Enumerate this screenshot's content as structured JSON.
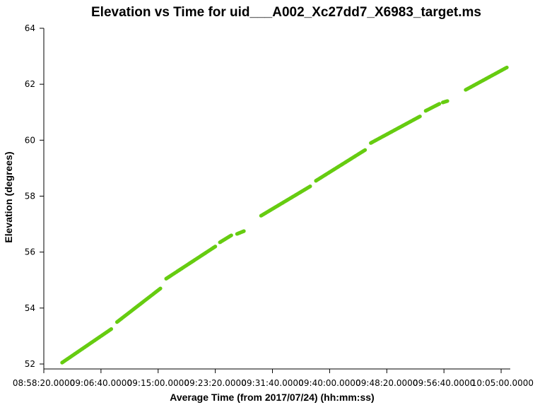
{
  "chart_data": {
    "type": "scatter",
    "title": "Elevation vs Time for uid___A002_Xc27dd7_X6983_target.ms",
    "xlabel": "Average Time (from 2017/07/24) (hh:mm:ss)",
    "ylabel": "Elevation (degrees)",
    "x_ticks": [
      "08:58:20.0000",
      "09:06:40.0000",
      "09:15:00.0000",
      "09:23:20.0000",
      "09:31:40.0000",
      "09:40:00.0000",
      "09:48:20.0000",
      "09:56:40.0000",
      "10:05:00.0000"
    ],
    "y_ticks": [
      "52",
      "54",
      "56",
      "58",
      "60",
      "62",
      "64"
    ],
    "xlim": [
      "08:58:20",
      "10:06:20"
    ],
    "ylim": [
      52,
      64
    ],
    "grid": false,
    "point_color": "#66cc11",
    "segments": [
      {
        "start": "09:01:00",
        "end": "09:08:10",
        "y_start": 52.05,
        "y_end": 53.25
      },
      {
        "start": "09:09:00",
        "end": "09:15:20",
        "y_start": 53.5,
        "y_end": 54.7
      },
      {
        "start": "09:16:10",
        "end": "09:23:20",
        "y_start": 55.05,
        "y_end": 56.2
      },
      {
        "start": "09:24:00",
        "end": "09:25:40",
        "y_start": 56.35,
        "y_end": 56.6
      },
      {
        "start": "09:26:30",
        "end": "09:27:30",
        "y_start": 56.65,
        "y_end": 56.75
      },
      {
        "start": "09:30:00",
        "end": "09:37:10",
        "y_start": 57.3,
        "y_end": 58.35
      },
      {
        "start": "09:38:00",
        "end": "09:45:10",
        "y_start": 58.55,
        "y_end": 59.65
      },
      {
        "start": "09:46:00",
        "end": "09:53:10",
        "y_start": 59.9,
        "y_end": 60.85
      },
      {
        "start": "09:54:00",
        "end": "09:56:00",
        "y_start": 61.05,
        "y_end": 61.3
      },
      {
        "start": "09:56:30",
        "end": "09:57:10",
        "y_start": 61.35,
        "y_end": 61.4
      },
      {
        "start": "09:59:50",
        "end": "10:05:50",
        "y_start": 61.8,
        "y_end": 62.6
      }
    ]
  }
}
